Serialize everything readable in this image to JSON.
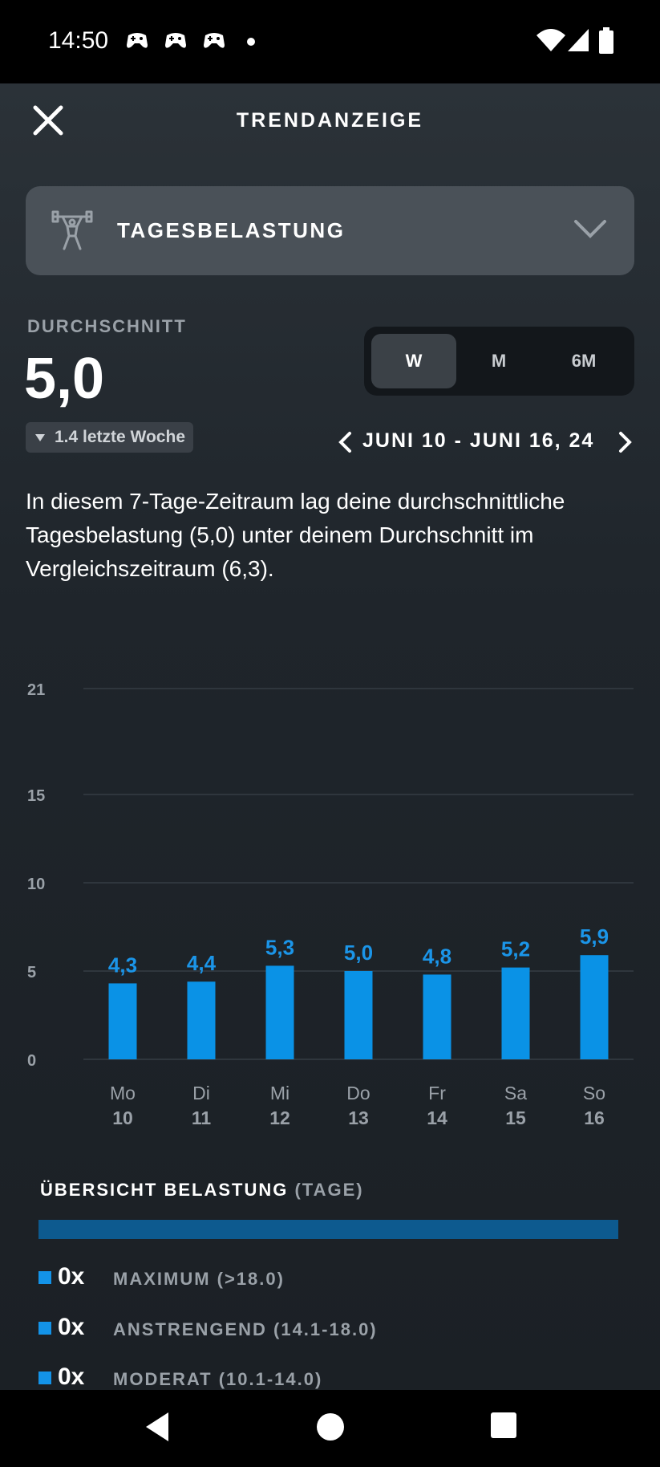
{
  "status_bar": {
    "time": "14:50",
    "notification_icons": [
      "game-controller-icon",
      "game-controller-icon",
      "game-controller-icon"
    ],
    "system_icons": [
      "wifi-icon",
      "cellular-signal-icon",
      "battery-icon"
    ]
  },
  "header": {
    "title": "TRENDANZEIGE"
  },
  "metric_selector": {
    "label": "TAGESBELASTUNG",
    "icon": "weightlifter-icon"
  },
  "average": {
    "label": "DURCHSCHNITT",
    "value": "5,0",
    "change_text": "1.4 letzte Woche",
    "change_direction": "down"
  },
  "range_toggle": {
    "options": [
      "W",
      "M",
      "6M"
    ],
    "selected": "W"
  },
  "date_range": {
    "label": "JUNI 10 - JUNI 16, 24"
  },
  "summary_text": "In diesem 7-Tage-Zeitraum lag deine durchschnittliche Tagesbelastung (5,0) unter deinem Durchschnitt im Vergleichszeitraum (6,3).",
  "chart_data": {
    "type": "bar",
    "categories": [
      "Mo 10",
      "Di 11",
      "Mi 12",
      "Do 13",
      "Fr 14",
      "Sa 15",
      "So 16"
    ],
    "day_labels": [
      "Mo",
      "Di",
      "Mi",
      "Do",
      "Fr",
      "Sa",
      "So"
    ],
    "date_labels": [
      "10",
      "11",
      "12",
      "13",
      "14",
      "15",
      "16"
    ],
    "values": [
      4.3,
      4.4,
      5.3,
      5.0,
      4.8,
      5.2,
      5.9
    ],
    "value_labels": [
      "4,3",
      "4,4",
      "5,3",
      "5,0",
      "4,8",
      "5,2",
      "5,9"
    ],
    "yticks": [
      0,
      5,
      10,
      15,
      21
    ],
    "ytick_labels": [
      "0",
      "5",
      "10",
      "15",
      "21"
    ],
    "ylim": [
      0,
      21
    ],
    "grid": true,
    "bar_color": "#0a92e6",
    "label_color": "#1b95e8"
  },
  "overview": {
    "title": "ÜBERSICHT BELASTUNG",
    "subtitle": "(TAGE)",
    "bar_color": "#0d5a8f",
    "items": [
      {
        "count": "0x",
        "label": "MAXIMUM (>18.0)"
      },
      {
        "count": "0x",
        "label": "ANSTRENGEND (14.1-18.0)"
      },
      {
        "count": "0x",
        "label": "MODERAT (10.1-14.0)"
      }
    ]
  },
  "nav_bar": {
    "buttons": [
      "back-icon",
      "home-icon",
      "recents-icon"
    ]
  }
}
